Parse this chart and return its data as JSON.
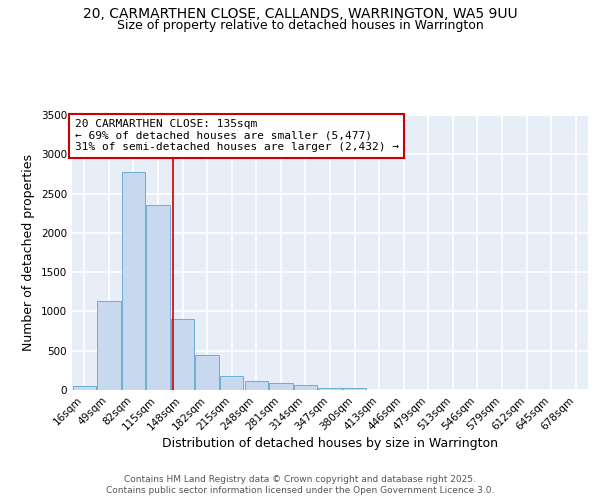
{
  "title_line1": "20, CARMARTHEN CLOSE, CALLANDS, WARRINGTON, WA5 9UU",
  "title_line2": "Size of property relative to detached houses in Warrington",
  "xlabel": "Distribution of detached houses by size in Warrington",
  "ylabel": "Number of detached properties",
  "categories": [
    "16sqm",
    "49sqm",
    "82sqm",
    "115sqm",
    "148sqm",
    "182sqm",
    "215sqm",
    "248sqm",
    "281sqm",
    "314sqm",
    "347sqm",
    "380sqm",
    "413sqm",
    "446sqm",
    "479sqm",
    "513sqm",
    "546sqm",
    "579sqm",
    "612sqm",
    "645sqm",
    "678sqm"
  ],
  "values": [
    50,
    1130,
    2780,
    2350,
    900,
    450,
    175,
    110,
    90,
    60,
    30,
    25,
    5,
    3,
    1,
    0,
    0,
    0,
    0,
    0,
    0
  ],
  "bar_color": "#c8d8ee",
  "bar_edge_color": "#6baed6",
  "plot_bg_color": "#e8eef8",
  "fig_bg_color": "#ffffff",
  "grid_color": "#ffffff",
  "ylim": [
    0,
    3500
  ],
  "yticks": [
    0,
    500,
    1000,
    1500,
    2000,
    2500,
    3000,
    3500
  ],
  "property_label": "20 CARMARTHEN CLOSE: 135sqm",
  "annotation_line1": "← 69% of detached houses are smaller (5,477)",
  "annotation_line2": "31% of semi-detached houses are larger (2,432) →",
  "annotation_box_color": "#cc0000",
  "vline_color": "#cc0000",
  "footer_line1": "Contains HM Land Registry data © Crown copyright and database right 2025.",
  "footer_line2": "Contains public sector information licensed under the Open Government Licence 3.0.",
  "title_fontsize": 10,
  "subtitle_fontsize": 9,
  "axis_label_fontsize": 9,
  "tick_fontsize": 7.5,
  "annotation_fontsize": 8,
  "footer_fontsize": 6.5
}
